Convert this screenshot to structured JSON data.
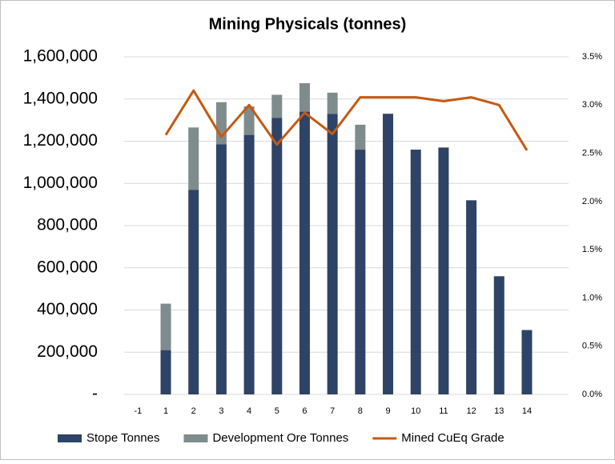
{
  "chart_data": {
    "type": "bar_line",
    "title": "Mining Physicals (tonnes)",
    "categories": [
      "-1",
      "1",
      "2",
      "3",
      "4",
      "5",
      "6",
      "7",
      "8",
      "9",
      "10",
      "11",
      "12",
      "13",
      "14"
    ],
    "series": [
      {
        "name": "Stope Tonnes",
        "type": "bar",
        "color": "#2e4366",
        "values": [
          0,
          210000,
          970000,
          1185000,
          1230000,
          1310000,
          1340000,
          1330000,
          1160000,
          1330000,
          1160000,
          1170000,
          920000,
          560000,
          305000
        ]
      },
      {
        "name": "Development Ore Tonnes",
        "type": "bar",
        "color": "#7f8c8d",
        "values": [
          0,
          220000,
          295000,
          200000,
          135000,
          110000,
          135000,
          100000,
          118000,
          0,
          0,
          0,
          0,
          0,
          0
        ]
      },
      {
        "name": "Mined CuEq Grade",
        "type": "line",
        "axis": "y2",
        "color": "#c55a11",
        "values": [
          null,
          2.69,
          3.15,
          2.67,
          3.0,
          2.59,
          2.92,
          2.7,
          3.08,
          3.08,
          3.08,
          3.04,
          3.08,
          3.0,
          2.53
        ]
      }
    ],
    "stacked": true,
    "ylim": [
      0,
      1600000
    ],
    "yticks": [
      {
        "value": 0,
        "label": "-"
      },
      {
        "value": 200000,
        "label": "200,000"
      },
      {
        "value": 400000,
        "label": "400,000"
      },
      {
        "value": 600000,
        "label": "600,000"
      },
      {
        "value": 800000,
        "label": "800,000"
      },
      {
        "value": 1000000,
        "label": "1,000,000"
      },
      {
        "value": 1200000,
        "label": "1,200,000"
      },
      {
        "value": 1400000,
        "label": "1,400,000"
      },
      {
        "value": 1600000,
        "label": "1,600,000"
      }
    ],
    "y2lim": [
      0,
      3.5
    ],
    "y2ticks": [
      {
        "value": 0,
        "label": "0.0%"
      },
      {
        "value": 0.5,
        "label": "0.5%"
      },
      {
        "value": 1,
        "label": "1.0%"
      },
      {
        "value": 1.5,
        "label": "1.5%"
      },
      {
        "value": 2,
        "label": "2.0%"
      },
      {
        "value": 2.5,
        "label": "2.5%"
      },
      {
        "value": 3,
        "label": "3.0%"
      },
      {
        "value": 3.5,
        "label": "3.5%"
      }
    ],
    "grid": true,
    "legend": "bottom"
  }
}
